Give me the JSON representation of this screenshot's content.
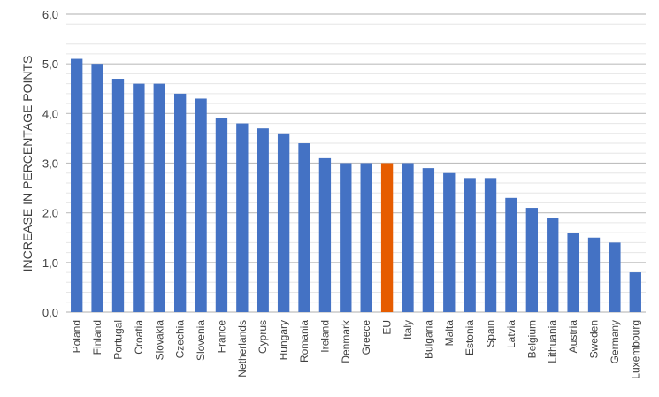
{
  "chart_data": {
    "type": "bar",
    "title": "",
    "xlabel": "",
    "ylabel": "INCREASE IN PERCENTAGE POINTS",
    "ylim": [
      0,
      6
    ],
    "yticks": [
      "0,0",
      "1,0",
      "2,0",
      "3,0",
      "4,0",
      "5,0",
      "6,0"
    ],
    "grid": true,
    "minor_grid_step": 0.2,
    "categories": [
      "Poland",
      "Finland",
      "Portugal",
      "Croatia",
      "Slovakia",
      "Czechia",
      "Slovenia",
      "France",
      "Netherlands",
      "Cyprus",
      "Hungary",
      "Romania",
      "Ireland",
      "Denmark",
      "Greece",
      "EU",
      "Italy",
      "Bulgaria",
      "Malta",
      "Estonia",
      "Spain",
      "Latvia",
      "Belgium",
      "Lithuania",
      "Austria",
      "Sweden",
      "Germany",
      "Luxembourg"
    ],
    "values": [
      5.1,
      5.0,
      4.7,
      4.6,
      4.6,
      4.4,
      4.3,
      3.9,
      3.8,
      3.7,
      3.6,
      3.4,
      3.1,
      3.0,
      3.0,
      3.0,
      3.0,
      2.9,
      2.8,
      2.7,
      2.7,
      2.3,
      2.1,
      1.9,
      1.6,
      1.5,
      1.4,
      0.8
    ],
    "highlight_category": "EU",
    "colors": {
      "bar": "#4472C4",
      "highlight": "#E65C00",
      "major_grid": "#BFBFBF",
      "minor_grid": "#E6E6E6"
    }
  }
}
